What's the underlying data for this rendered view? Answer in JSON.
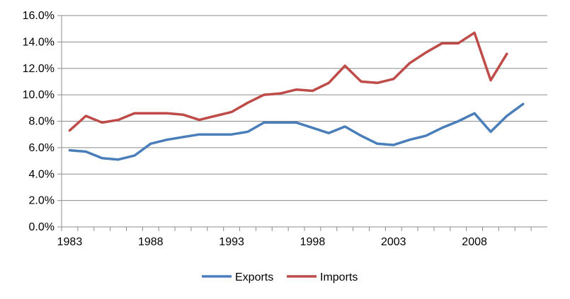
{
  "chart_data": {
    "type": "line",
    "title": "",
    "xlabel": "",
    "ylabel": "",
    "x": [
      1983,
      1984,
      1985,
      1986,
      1987,
      1988,
      1989,
      1990,
      1991,
      1992,
      1993,
      1994,
      1995,
      1996,
      1997,
      1998,
      1999,
      2000,
      2001,
      2002,
      2003,
      2004,
      2005,
      2006,
      2007,
      2008,
      2009,
      2010,
      2011
    ],
    "x_ticks": [
      "1983",
      "1988",
      "1993",
      "1998",
      "2003",
      "2008"
    ],
    "y_ticks": [
      "0.0%",
      "2.0%",
      "4.0%",
      "6.0%",
      "8.0%",
      "10.0%",
      "12.0%",
      "14.0%",
      "16.0%"
    ],
    "ylim": [
      0,
      16
    ],
    "grid": true,
    "legend_position": "bottom",
    "series": [
      {
        "name": "Exports",
        "color": "#4a7ebb",
        "values": [
          5.8,
          5.7,
          5.2,
          5.1,
          5.4,
          6.3,
          6.6,
          6.8,
          7.0,
          7.0,
          7.0,
          7.2,
          7.9,
          7.9,
          7.9,
          7.5,
          7.1,
          7.6,
          6.9,
          6.3,
          6.2,
          6.6,
          6.9,
          7.5,
          8.0,
          8.6,
          7.2,
          8.4,
          9.3
        ]
      },
      {
        "name": "Imports",
        "color": "#be4b48",
        "values": [
          7.3,
          8.4,
          7.9,
          8.1,
          8.6,
          8.6,
          8.6,
          8.5,
          8.1,
          8.4,
          8.7,
          9.4,
          10.0,
          10.1,
          10.4,
          10.3,
          10.9,
          12.2,
          11.0,
          10.9,
          11.2,
          12.4,
          13.2,
          13.9,
          13.9,
          14.7,
          11.1,
          13.1,
          null
        ]
      }
    ]
  }
}
